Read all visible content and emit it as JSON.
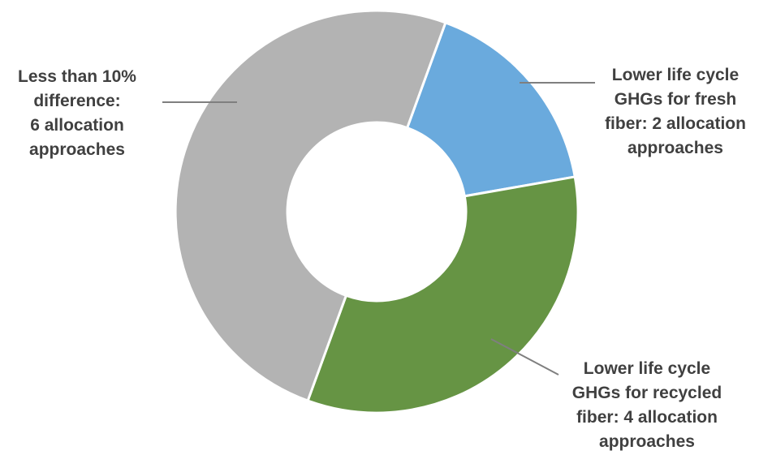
{
  "chart_data": {
    "type": "pie",
    "variant": "donut",
    "title": "",
    "categories": [
      "Lower life cycle GHGs for fresh fiber: 2 allocation approaches",
      "Lower life cycle GHGs for recycled fiber: 4 allocation approaches",
      "Less than 10% difference: 6 allocation approaches"
    ],
    "values": [
      2,
      4,
      6
    ],
    "colors": [
      "#6aaadd",
      "#669444",
      "#b3b3b3"
    ],
    "start_angle_deg": 20,
    "direction": "clockwise",
    "legend": "none",
    "labels": [
      {
        "lines": [
          "Lower life cycle",
          "GHGs for fresh",
          "fiber: 2 allocation",
          "approaches"
        ]
      },
      {
        "lines": [
          "Lower life cycle",
          "GHGs for recycled",
          "fiber: 4 allocation",
          "approaches"
        ]
      },
      {
        "lines": [
          "Less than 10%",
          "difference:",
          "6 allocation",
          "approaches"
        ]
      }
    ]
  }
}
